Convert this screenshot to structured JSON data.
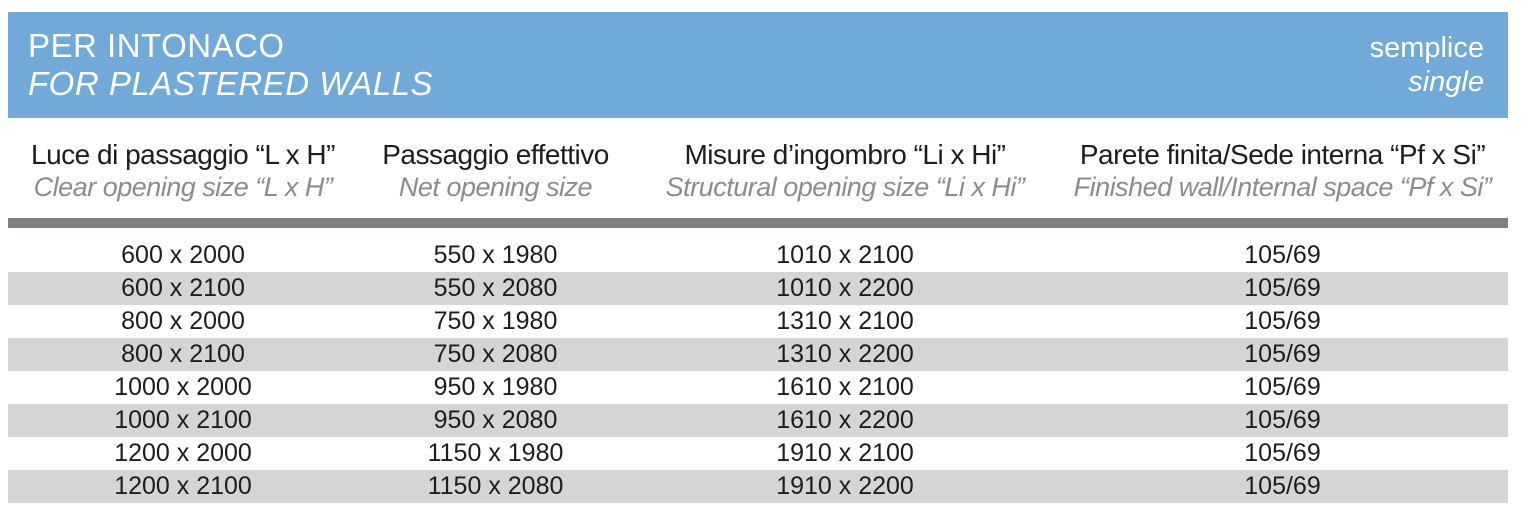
{
  "banner": {
    "title_it": "PER INTONACO",
    "title_en": "FOR PLASTERED WALLS",
    "variant_it": "semplice",
    "variant_en": "single",
    "bg_color": "#71aad9"
  },
  "table": {
    "columns": [
      {
        "it": "Luce di passaggio “L x H”",
        "en": "Clear opening size “L x H”"
      },
      {
        "it": "Passaggio effettivo",
        "en": "Net opening size"
      },
      {
        "it": "Misure d’ingombro “Li x Hi”",
        "en": "Structural opening size “Li x Hi”"
      },
      {
        "it": "Parete finita/Sede interna “Pf x Si”",
        "en": "Finished wall/Internal space “Pf x Si”"
      }
    ],
    "rows": [
      [
        "600 x 2000",
        "550 x 1980",
        "1010 x 2100",
        "105/69"
      ],
      [
        "600 x 2100",
        "550 x 2080",
        "1010 x 2200",
        "105/69"
      ],
      [
        "800 x 2000",
        "750 x 1980",
        "1310 x 2100",
        "105/69"
      ],
      [
        "800 x 2100",
        "750 x 2080",
        "1310 x 2200",
        "105/69"
      ],
      [
        "1000 x 2000",
        "950 x 1980",
        "1610 x 2100",
        "105/69"
      ],
      [
        "1000 x 2100",
        "950 x 2080",
        "1610 x 2200",
        "105/69"
      ],
      [
        "1200 x 2000",
        "1150 x 1980",
        "1910 x 2100",
        "105/69"
      ],
      [
        "1200 x 2100",
        "1150 x 2080",
        "1910 x 2200",
        "105/69"
      ]
    ],
    "colors": {
      "row_alt": "#d4d5d7",
      "separator_bar": "#7d7f82",
      "header_en_text": "#8a8c8e",
      "body_text": "#1d1d1f"
    }
  }
}
